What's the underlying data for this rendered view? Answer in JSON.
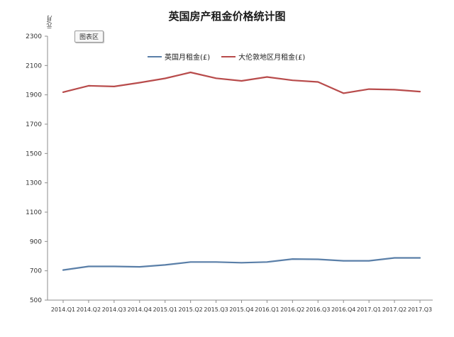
{
  "chart_data": {
    "type": "line",
    "title": "英国房产租金价格统计图",
    "ylabel": "元/月",
    "xlabel": "",
    "ylim": [
      500,
      2300
    ],
    "yticks": [
      500,
      700,
      900,
      1100,
      1300,
      1500,
      1700,
      1900,
      2100,
      2300
    ],
    "grid": false,
    "legend_placement": "top-center",
    "chart_area_tag": "图表区",
    "categories": [
      "2014.Q1",
      "2014.Q2",
      "2014.Q3",
      "2014.Q4",
      "2015.Q1",
      "2015.Q2",
      "2015.Q3",
      "2015.Q4",
      "2016.Q1",
      "2016.Q2",
      "2016.Q3",
      "2016.Q4",
      "2017.Q1",
      "2017.Q2",
      "2017.Q3"
    ],
    "series": [
      {
        "name": "英国月租金(£)",
        "color": "#5a7fa8",
        "values": [
          705,
          730,
          730,
          727,
          740,
          760,
          760,
          755,
          760,
          780,
          778,
          768,
          768,
          788,
          788
        ]
      },
      {
        "name": "大伦敦地区月租金(£)",
        "color": "#b84b4b",
        "values": [
          1918,
          1962,
          1957,
          1983,
          2012,
          2053,
          2013,
          1995,
          2022,
          1999,
          1988,
          1911,
          1939,
          1935,
          1922
        ]
      }
    ]
  }
}
